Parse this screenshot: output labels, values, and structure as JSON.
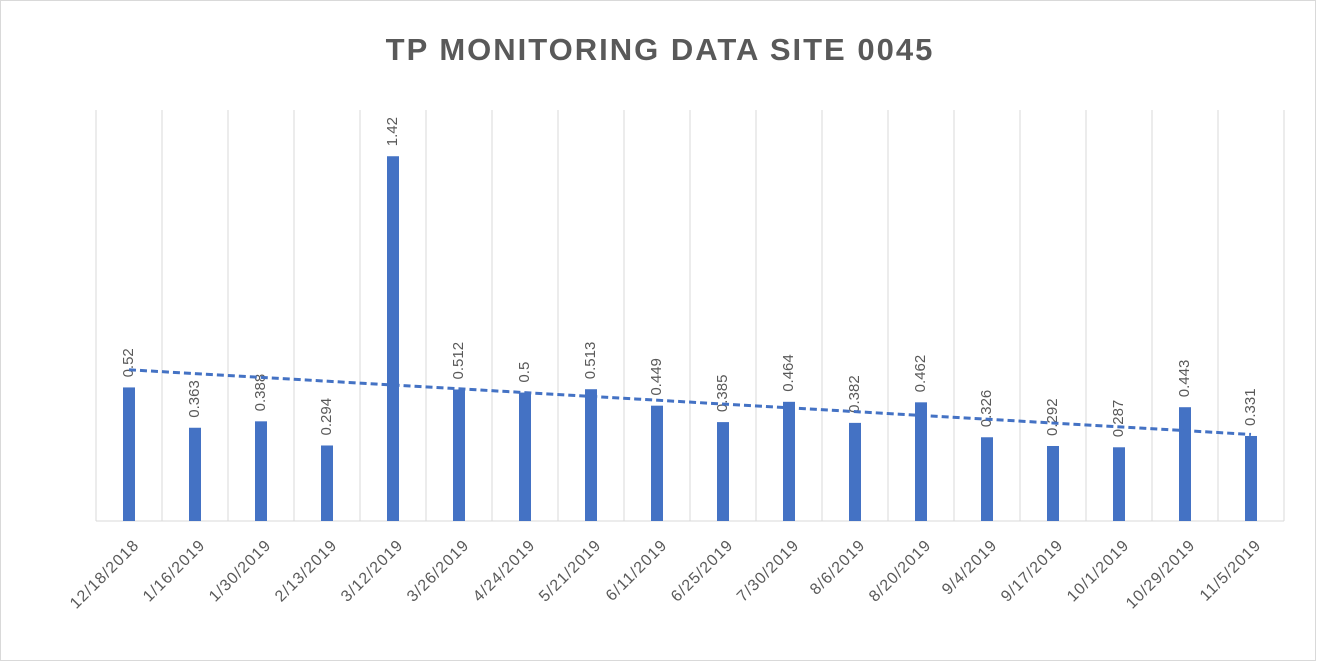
{
  "chart_data": {
    "type": "bar",
    "title": "TP MONITORING DATA SITE 0045",
    "categories": [
      "12/18/2018",
      "1/16/2019",
      "1/30/2019",
      "2/13/2019",
      "3/12/2019",
      "3/26/2019",
      "4/24/2019",
      "5/21/2019",
      "6/11/2019",
      "6/25/2019",
      "7/30/2019",
      "8/6/2019",
      "8/20/2019",
      "9/4/2019",
      "9/17/2019",
      "10/1/2019",
      "10/29/2019",
      "11/5/2019"
    ],
    "values": [
      0.52,
      0.363,
      0.388,
      0.294,
      1.42,
      0.512,
      0.5,
      0.513,
      0.449,
      0.385,
      0.464,
      0.382,
      0.462,
      0.326,
      0.292,
      0.287,
      0.443,
      0.331
    ],
    "color": "#4472c4",
    "ylim": [
      0,
      1.6
    ],
    "grid": true,
    "trendline": "linear"
  }
}
